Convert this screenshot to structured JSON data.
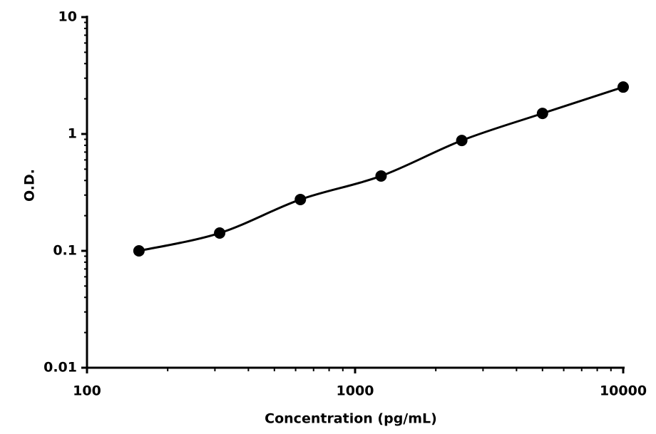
{
  "chart_data": {
    "type": "line",
    "x_label": "Concentration (pg/mL)",
    "y_label": "O.D.",
    "x": [
      156.25,
      312.5,
      625,
      1250,
      2500,
      5000,
      10000
    ],
    "series": [
      {
        "name": "O.D.",
        "color": "#000000",
        "values": [
          0.1,
          0.142,
          0.275,
          0.437,
          0.88,
          1.5,
          2.52
        ]
      }
    ],
    "xlim": [
      100,
      10000
    ],
    "xticks": [
      100,
      1000,
      10000
    ],
    "ylim": [
      0.01,
      10
    ],
    "yticks": [
      0.01,
      0.1,
      1,
      10
    ],
    "xscale": "log",
    "yscale": "log",
    "grid": false,
    "legend": false
  }
}
